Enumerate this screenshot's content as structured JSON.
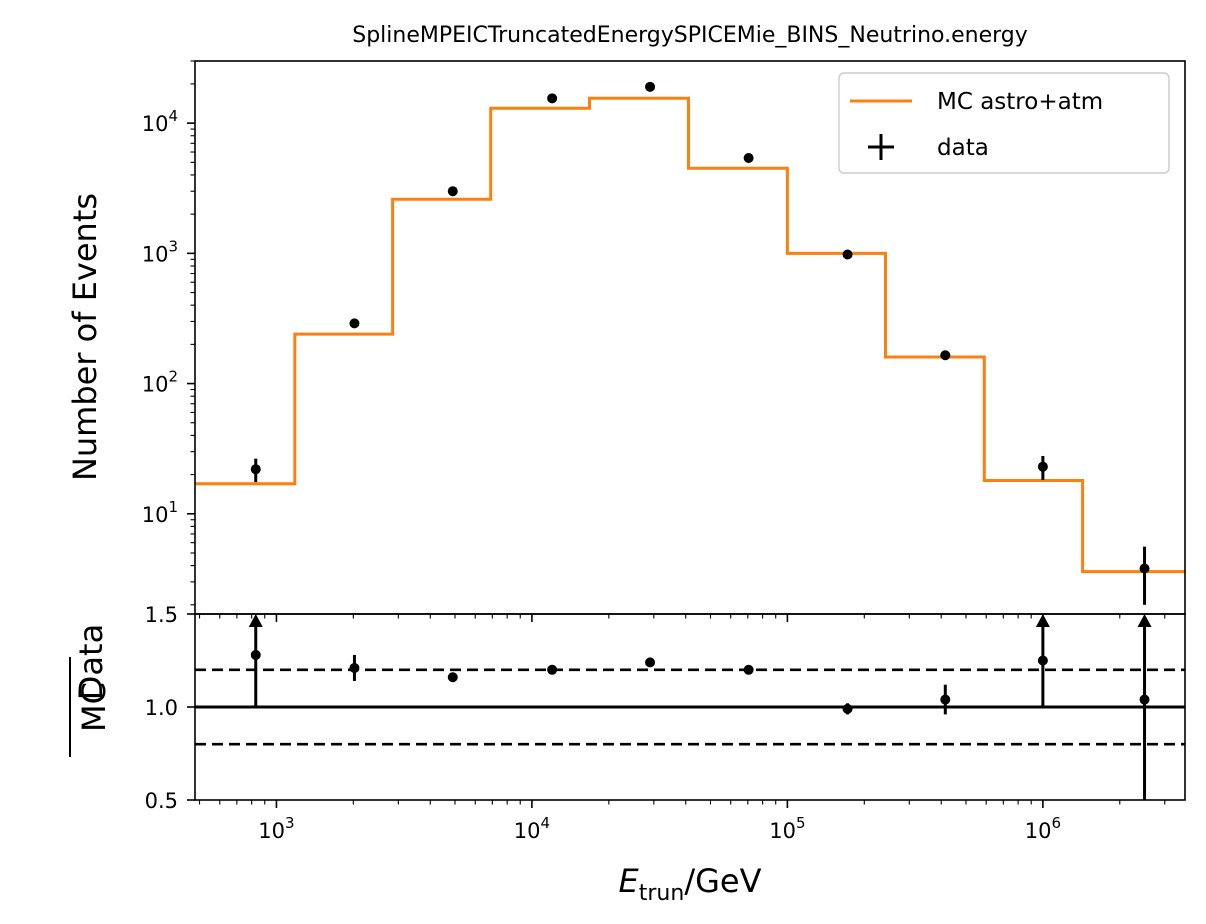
{
  "chart_data": {
    "type": "histogram",
    "title": "SplineMPEICTruncatedEnergySPICEMie_BINS_Neutrino.energy",
    "xlabel": {
      "var": "E",
      "sub": "trun",
      "unit": "/GeV"
    },
    "x_scale": "log",
    "xlim": [
      480,
      3600000
    ],
    "x_ticks": [
      {
        "value": 1000,
        "base": "10",
        "exp": "3"
      },
      {
        "value": 10000,
        "base": "10",
        "exp": "4"
      },
      {
        "value": 100000,
        "base": "10",
        "exp": "5"
      },
      {
        "value": 1000000,
        "base": "10",
        "exp": "6"
      }
    ],
    "main": {
      "ylabel": "Number of Events",
      "y_scale": "log",
      "ylim": [
        1.7,
        30000
      ],
      "y_ticks": [
        {
          "value": 10,
          "base": "10",
          "exp": "1"
        },
        {
          "value": 100,
          "base": "10",
          "exp": "2"
        },
        {
          "value": 1000,
          "base": "10",
          "exp": "3"
        },
        {
          "value": 10000,
          "base": "10",
          "exp": "4"
        }
      ],
      "legend_position": "top-right",
      "series": [
        {
          "name": "MC astro+atm",
          "kind": "step",
          "color": "#ff7f0e",
          "bin_edges": [
            480,
            1180,
            2850,
            6900,
            16800,
            41000,
            100000,
            242000,
            590000,
            1430000,
            3600000
          ],
          "values": [
            17,
            240,
            2600,
            13000,
            15500,
            4500,
            1000,
            160,
            18,
            3.6
          ]
        },
        {
          "name": "data",
          "kind": "errorbar",
          "color": "#000000",
          "x": [
            830,
            2020,
            4900,
            12000,
            29000,
            70500,
            172000,
            415000,
            1000000,
            2500000
          ],
          "y": [
            22,
            290,
            3000,
            15500,
            19000,
            5400,
            980,
            165,
            23,
            3.8
          ],
          "yerr_low": [
            4.5,
            17,
            55,
            125,
            138,
            73,
            31,
            13,
            4.8,
            1.8
          ],
          "yerr_high": [
            4.5,
            17,
            55,
            125,
            138,
            73,
            31,
            13,
            4.8,
            1.8
          ]
        }
      ]
    },
    "ratio": {
      "ylabel_num": "Data",
      "ylabel_den": "MC",
      "ylim": [
        0.5,
        1.5
      ],
      "y_ticks": [
        "0.5",
        "1.0",
        "1.5"
      ],
      "reference_line": 1.0,
      "band_lines": [
        0.8,
        1.2
      ],
      "points": [
        {
          "x": 830,
          "y": 1.28,
          "low": 1.0,
          "high": 1.5,
          "arrow_up": true
        },
        {
          "x": 2020,
          "y": 1.21,
          "low": 1.14,
          "high": 1.28,
          "arrow_up": false
        },
        {
          "x": 4900,
          "y": 1.16,
          "low": 1.14,
          "high": 1.18,
          "arrow_up": false
        },
        {
          "x": 12000,
          "y": 1.2,
          "low": 1.19,
          "high": 1.21,
          "arrow_up": false
        },
        {
          "x": 29000,
          "y": 1.24,
          "low": 1.23,
          "high": 1.25,
          "arrow_up": false
        },
        {
          "x": 70500,
          "y": 1.2,
          "low": 1.18,
          "high": 1.22,
          "arrow_up": false
        },
        {
          "x": 172000,
          "y": 0.99,
          "low": 0.96,
          "high": 1.02,
          "arrow_up": false
        },
        {
          "x": 415000,
          "y": 1.04,
          "low": 0.96,
          "high": 1.12,
          "arrow_up": false
        },
        {
          "x": 1000000,
          "y": 1.25,
          "low": 1.0,
          "high": 1.5,
          "arrow_up": true
        },
        {
          "x": 2500000,
          "y": 1.04,
          "low": 0.5,
          "high": 1.5,
          "arrow_up": true
        }
      ]
    }
  }
}
